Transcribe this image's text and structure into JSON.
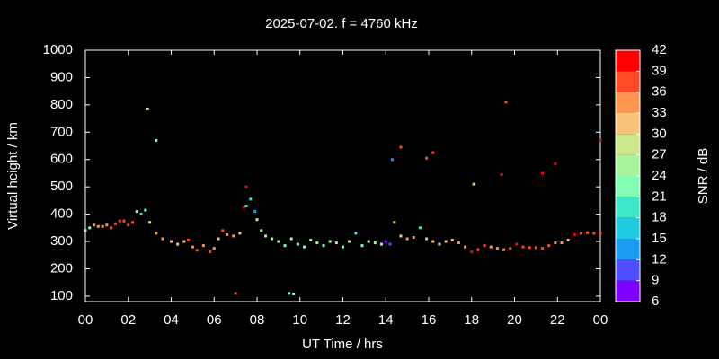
{
  "chart_data": {
    "type": "scatter",
    "title": "2025-07-02. f = 4760 kHz",
    "xlabel": "UT Time / hrs",
    "ylabel": "Virtual height / km",
    "xlim": [
      0,
      24
    ],
    "ylim": [
      80,
      1000
    ],
    "xticks": [
      {
        "value": 0,
        "label": "00"
      },
      {
        "value": 2,
        "label": "02"
      },
      {
        "value": 4,
        "label": "04"
      },
      {
        "value": 6,
        "label": "06"
      },
      {
        "value": 8,
        "label": "08"
      },
      10,
      12,
      14,
      16,
      18,
      20,
      22,
      {
        "value": 24,
        "label": "00"
      }
    ],
    "yticks": [
      100,
      200,
      300,
      400,
      500,
      600,
      700,
      800,
      900,
      1000
    ],
    "colorbar": {
      "label": "SNR / dB",
      "ticks": [
        6,
        9,
        12,
        15,
        18,
        21,
        24,
        27,
        30,
        33,
        36,
        39,
        42
      ],
      "colors": [
        "#8000ff",
        "#4f4fff",
        "#1a9cf3",
        "#1ecbe1",
        "#3ae8c8",
        "#80ffb4",
        "#a8f49a",
        "#cde88a",
        "#f6c57a",
        "#ff9650",
        "#ff4c26",
        "#ff0000"
      ]
    },
    "x": [
      0.0,
      0.2,
      0.4,
      0.6,
      0.8,
      1.0,
      1.2,
      1.4,
      1.6,
      1.8,
      2.0,
      2.2,
      2.4,
      2.6,
      2.8,
      3.0,
      3.3,
      3.6,
      4.0,
      4.3,
      4.6,
      4.8,
      5.0,
      5.2,
      5.5,
      5.8,
      6.0,
      6.2,
      6.4,
      6.6,
      6.9,
      7.2,
      7.4,
      7.5,
      7.7,
      7.9,
      8.0,
      8.2,
      8.4,
      8.7,
      9.0,
      9.3,
      9.6,
      9.9,
      10.2,
      10.5,
      10.8,
      11.1,
      11.4,
      11.7,
      12.0,
      12.3,
      12.6,
      12.9,
      13.2,
      13.5,
      13.8,
      14.0,
      14.2,
      14.4,
      14.7,
      15.0,
      15.3,
      15.6,
      15.9,
      16.2,
      16.5,
      16.8,
      17.1,
      17.4,
      17.7,
      18.0,
      18.3,
      18.6,
      18.9,
      19.2,
      19.5,
      19.8,
      20.1,
      20.4,
      20.7,
      21.0,
      21.3,
      21.6,
      21.9,
      22.2,
      22.5,
      22.8,
      23.1,
      23.4,
      23.7,
      24.0,
      2.9,
      3.3,
      7.0,
      7.5,
      9.5,
      9.7,
      14.3,
      14.7,
      15.9,
      16.2,
      18.1,
      19.4,
      19.6,
      21.3,
      21.9,
      24.0
    ],
    "y": [
      340,
      350,
      360,
      355,
      355,
      360,
      350,
      365,
      375,
      375,
      360,
      370,
      410,
      400,
      415,
      370,
      330,
      310,
      300,
      290,
      300,
      305,
      280,
      268,
      285,
      262,
      275,
      310,
      340,
      325,
      320,
      330,
      425,
      430,
      455,
      410,
      380,
      340,
      320,
      310,
      300,
      285,
      310,
      290,
      280,
      305,
      295,
      285,
      300,
      295,
      280,
      300,
      330,
      285,
      300,
      295,
      290,
      300,
      290,
      370,
      320,
      310,
      315,
      350,
      310,
      300,
      290,
      300,
      305,
      295,
      280,
      262,
      270,
      285,
      280,
      275,
      270,
      275,
      290,
      280,
      278,
      278,
      275,
      285,
      295,
      295,
      305,
      325,
      330,
      332,
      330,
      330,
      785,
      670,
      110,
      500,
      110,
      108,
      600,
      645,
      605,
      625,
      510,
      545,
      810,
      550,
      585,
      670
    ],
    "snr": [
      24,
      22,
      33,
      34,
      34,
      35,
      36,
      37,
      38,
      38,
      37,
      36,
      22,
      20,
      23,
      29,
      33,
      33,
      32,
      31,
      32,
      38,
      35,
      38,
      34,
      38,
      33,
      32,
      36,
      34,
      33,
      32,
      39,
      19,
      20,
      13,
      29,
      24,
      25,
      25,
      24,
      23,
      24,
      23,
      22,
      24,
      25,
      23,
      24,
      25,
      23,
      24,
      19,
      23,
      24,
      25,
      23,
      8,
      10,
      30,
      32,
      34,
      33,
      19,
      32,
      30,
      29,
      31,
      32,
      33,
      34,
      39,
      38,
      36,
      35,
      34,
      33,
      36,
      39,
      38,
      37,
      38,
      37,
      36,
      34,
      33,
      32,
      39,
      38,
      38,
      38,
      38,
      27,
      21,
      36,
      39,
      21,
      21,
      12,
      36,
      36,
      36,
      30,
      39,
      36,
      39,
      39,
      39
    ]
  }
}
